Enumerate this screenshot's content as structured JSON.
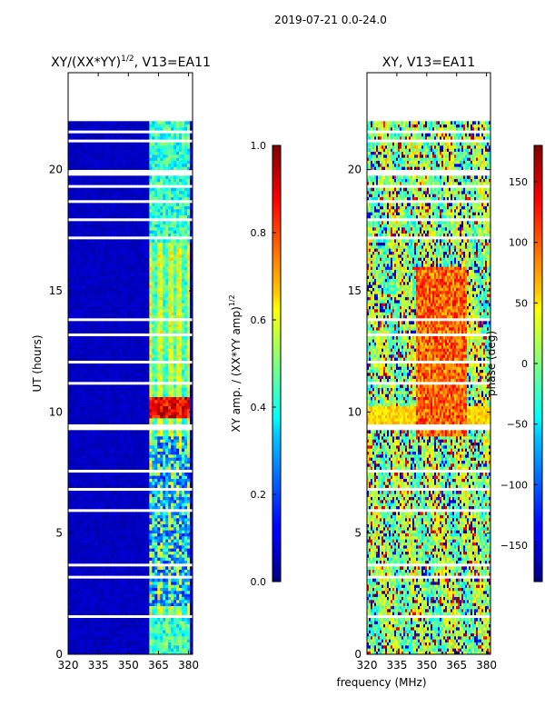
{
  "figure": {
    "suptitle": "2019-07-21 0.0-24.0",
    "shared_xlabel": "frequency (MHz)"
  },
  "colors": {
    "missing_data": "#ffffff",
    "jet_low": "#00007f",
    "jet_high": "#7f0000"
  },
  "chart_data": [
    {
      "type": "heatmap",
      "title_main": "XY/(XX*YY)",
      "title_exp": "1/2",
      "title_tail": ", V13=EA11",
      "xlabel": "",
      "ylabel": "UT (hours)",
      "xlim": [
        320,
        382
      ],
      "ylim": [
        0,
        24
      ],
      "xticks": [
        320,
        335,
        350,
        365,
        380
      ],
      "yticks": [
        0,
        5,
        10,
        15,
        20
      ],
      "data_end_hour": 22,
      "freq_active_band": [
        360,
        380
      ],
      "strong_hours": [
        9.7,
        10.6
      ],
      "colorbar": {
        "label_main": "XY amp. / (XX*YY amp)",
        "label_exp": "1/2",
        "range": [
          0.0,
          1.0
        ],
        "ticks": [
          "0.0",
          "0.2",
          "0.4",
          "0.6",
          "0.8",
          "1.0"
        ],
        "colormap": "jet"
      }
    },
    {
      "type": "heatmap",
      "title_main": "XY, V13=EA11",
      "xlabel": "frequency (MHz)",
      "ylabel": "",
      "xlim": [
        320,
        382
      ],
      "ylim": [
        0,
        24
      ],
      "xticks": [
        320,
        335,
        350,
        365,
        380
      ],
      "yticks": [
        0,
        5,
        10,
        15,
        20
      ],
      "data_end_hour": 22,
      "colorbar": {
        "label": "phase (deg)",
        "range": [
          -180,
          180
        ],
        "ticks": [
          "−150",
          "−100",
          "−50",
          "0",
          "50",
          "100",
          "150"
        ],
        "tick_values": [
          -150,
          -100,
          -50,
          0,
          50,
          100,
          150
        ],
        "colormap": "jet"
      }
    }
  ]
}
